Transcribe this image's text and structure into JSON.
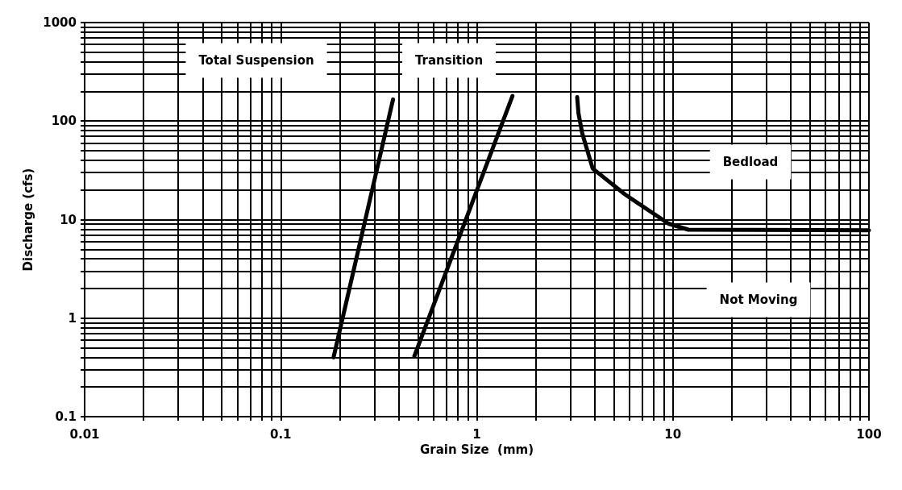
{
  "chart_data": {
    "type": "line",
    "xlabel": "Grain Size  (mm)",
    "ylabel": "Discharge (cfs)",
    "log": "xy",
    "grid": true,
    "marker": "none",
    "line_style": "solid",
    "xlim": [
      0.01,
      100
    ],
    "ylim": [
      0.1,
      1000
    ],
    "xticks": [
      0.01,
      {
        "value": 0.02,
        "label": null
      },
      {
        "value": 0.03,
        "label": null
      },
      {
        "value": 0.04,
        "label": null
      },
      {
        "value": 0.05,
        "label": null
      },
      {
        "value": 0.06,
        "label": null
      },
      {
        "value": 0.07,
        "label": null
      },
      {
        "value": 0.08,
        "label": null
      },
      {
        "value": 0.09,
        "label": null
      },
      0.1,
      {
        "value": 0.2,
        "label": null
      },
      {
        "value": 0.3,
        "label": null
      },
      {
        "value": 0.4,
        "label": null
      },
      {
        "value": 0.5,
        "label": null
      },
      {
        "value": 0.6,
        "label": null
      },
      {
        "value": 0.7,
        "label": null
      },
      {
        "value": 0.8,
        "label": null
      },
      {
        "value": 0.9,
        "label": null
      },
      1,
      {
        "value": 2,
        "label": null
      },
      {
        "value": 3,
        "label": null
      },
      {
        "value": 4,
        "label": null
      },
      {
        "value": 5,
        "label": null
      },
      {
        "value": 6,
        "label": null
      },
      {
        "value": 7,
        "label": null
      },
      {
        "value": 8,
        "label": null
      },
      {
        "value": 9,
        "label": null
      },
      10,
      {
        "value": 20,
        "label": null
      },
      {
        "value": 30,
        "label": null
      },
      {
        "value": 40,
        "label": null
      },
      {
        "value": 50,
        "label": null
      },
      {
        "value": 60,
        "label": null
      },
      {
        "value": 70,
        "label": null
      },
      {
        "value": 80,
        "label": null
      },
      {
        "value": 90,
        "label": null
      },
      100
    ],
    "yticks": [
      0.1,
      {
        "value": 0.2,
        "label": null
      },
      {
        "value": 0.3,
        "label": null
      },
      {
        "value": 0.4,
        "label": null
      },
      {
        "value": 0.5,
        "label": null
      },
      {
        "value": 0.6,
        "label": null
      },
      {
        "value": 0.7,
        "label": null
      },
      {
        "value": 0.8,
        "label": null
      },
      {
        "value": 0.9,
        "label": null
      },
      1,
      {
        "value": 2,
        "label": null
      },
      {
        "value": 3,
        "label": null
      },
      {
        "value": 4,
        "label": null
      },
      {
        "value": 5,
        "label": null
      },
      {
        "value": 6,
        "label": null
      },
      {
        "value": 7,
        "label": null
      },
      {
        "value": 8,
        "label": null
      },
      {
        "value": 9,
        "label": null
      },
      10,
      {
        "value": 20,
        "label": null
      },
      {
        "value": 30,
        "label": null
      },
      {
        "value": 40,
        "label": null
      },
      {
        "value": 50,
        "label": null
      },
      {
        "value": 60,
        "label": null
      },
      {
        "value": 70,
        "label": null
      },
      {
        "value": 80,
        "label": null
      },
      {
        "value": 90,
        "label": null
      },
      100,
      {
        "value": 200,
        "label": null
      },
      {
        "value": 300,
        "label": null
      },
      {
        "value": 400,
        "label": null
      },
      {
        "value": 500,
        "label": null
      },
      {
        "value": 600,
        "label": null
      },
      {
        "value": 700,
        "label": null
      },
      {
        "value": 800,
        "label": null
      },
      {
        "value": 900,
        "label": null
      },
      1000
    ],
    "series": [
      {
        "color": "#000000",
        "x": [
          0.186,
          0.374
        ],
        "values": [
          0.4,
          166
        ]
      },
      {
        "color": "#000000",
        "x": [
          0.48,
          1.52
        ],
        "values": [
          0.41,
          180
        ]
      },
      {
        "color": "#000000",
        "x": [
          3.25,
          3.3,
          3.45,
          3.9,
          5.7,
          9.5,
          12,
          100
        ],
        "values": [
          175,
          120,
          75,
          33,
          18,
          9.1,
          7.9,
          7.8
        ]
      }
    ],
    "annotations": [
      "Total Suspension",
      "Transition",
      "Bedload",
      "Not Moving"
    ]
  }
}
